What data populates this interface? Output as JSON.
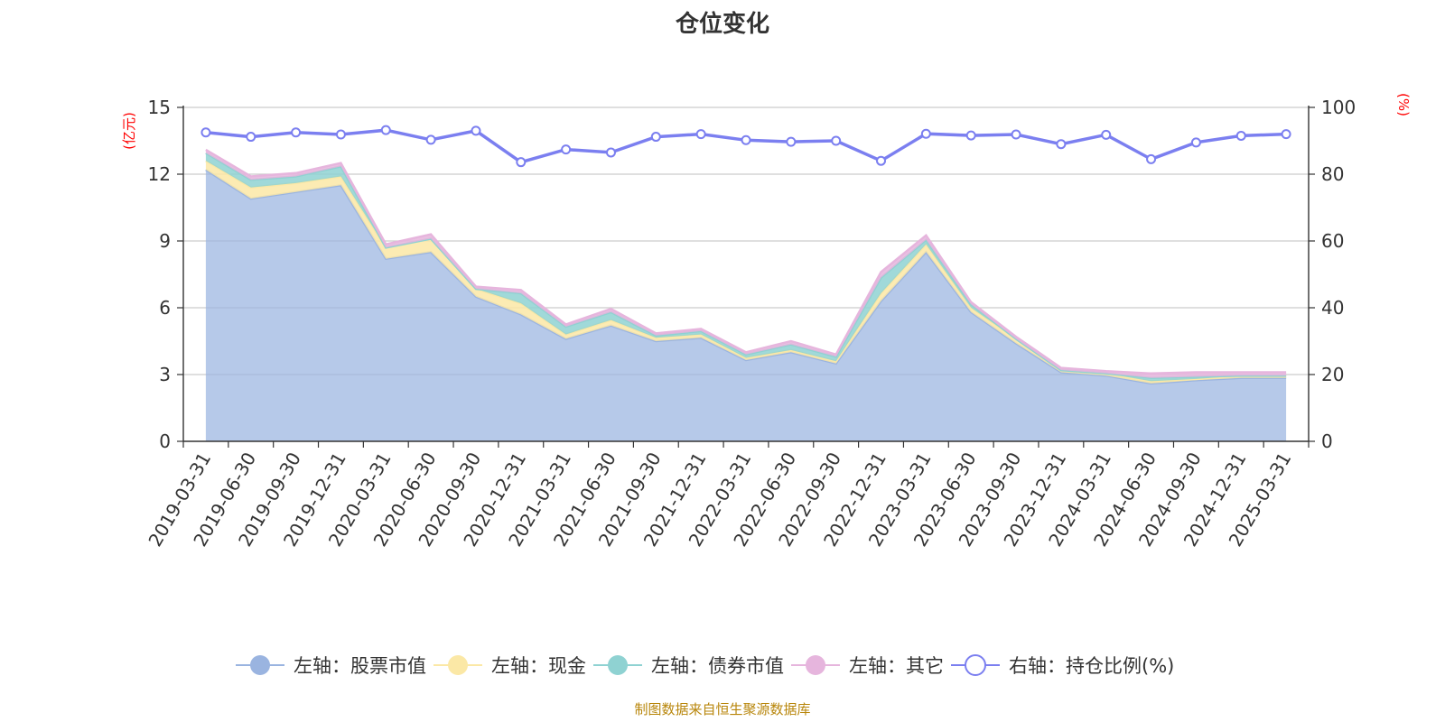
{
  "chart_data": {
    "type": "area",
    "title": "仓位变化",
    "y_left_unit": "(亿元)",
    "y_right_unit": "(%)",
    "y_left_ticks": [
      "0",
      "3",
      "6",
      "9",
      "12",
      "15"
    ],
    "y_right_ticks": [
      "0",
      "20",
      "40",
      "60",
      "80",
      "100"
    ],
    "ylim_left": [
      0,
      15
    ],
    "ylim_right": [
      0,
      100
    ],
    "x_tick_labels": [
      "2019-03-31",
      "2019-06-30",
      "2019-09-30",
      "2019-12-31",
      "2020-03-31",
      "2020-06-30",
      "2020-09-30",
      "2020-12-31",
      "2021-03-31",
      "2021-06-30",
      "2021-09-30",
      "2021-12-31",
      "2022-03-31",
      "2022-06-30",
      "2022-09-30",
      "2022-12-31",
      "2023-03-31",
      "2023-06-30",
      "2023-09-30",
      "2023-12-31",
      "2024-03-31",
      "2024-06-30",
      "2024-09-30",
      "2024-12-31",
      "2025-03-31"
    ],
    "grid": true,
    "legend_position": "bottom",
    "stacked": true,
    "series": [
      {
        "name": "左轴：股票市值",
        "axis": "left",
        "color": "#9ab4e0",
        "values": [
          12.2,
          10.9,
          11.2,
          11.5,
          8.2,
          8.5,
          6.5,
          5.7,
          4.6,
          5.2,
          4.5,
          4.65,
          3.65,
          4.0,
          3.5,
          6.3,
          8.5,
          5.8,
          4.4,
          3.1,
          2.95,
          2.6,
          2.75,
          2.85,
          2.85
        ]
      },
      {
        "name": "左轴：现金",
        "axis": "left",
        "color": "#fbe8a6",
        "values": [
          0.4,
          0.5,
          0.4,
          0.4,
          0.5,
          0.6,
          0.35,
          0.5,
          0.2,
          0.25,
          0.15,
          0.15,
          0.1,
          0.1,
          0.1,
          0.35,
          0.35,
          0.2,
          0.2,
          0.1,
          0.1,
          0.1,
          0.05,
          0.1,
          0.1
        ]
      },
      {
        "name": "左轴：债券市值",
        "axis": "left",
        "color": "#8fd2d2",
        "values": [
          0.35,
          0.35,
          0.3,
          0.45,
          0.0,
          0.0,
          0.0,
          0.45,
          0.35,
          0.35,
          0.1,
          0.15,
          0.15,
          0.25,
          0.2,
          0.7,
          0.2,
          0.15,
          0.0,
          0.0,
          0.0,
          0.15,
          0.1,
          0.0,
          0.0
        ]
      },
      {
        "name": "左轴：其它",
        "axis": "left",
        "color": "#e6b5dd",
        "values": [
          0.15,
          0.15,
          0.15,
          0.15,
          0.15,
          0.2,
          0.1,
          0.15,
          0.1,
          0.15,
          0.1,
          0.1,
          0.1,
          0.15,
          0.1,
          0.25,
          0.2,
          0.1,
          0.1,
          0.1,
          0.1,
          0.2,
          0.2,
          0.15,
          0.15
        ]
      },
      {
        "name": "右轴：持仓比例(%)",
        "axis": "right",
        "color": "#7b7ff0",
        "values": [
          92.5,
          91.2,
          92.5,
          91.9,
          93.2,
          90.3,
          93.0,
          83.6,
          87.4,
          86.5,
          91.2,
          92.0,
          90.2,
          89.7,
          90.0,
          84.0,
          92.1,
          91.6,
          91.9,
          89.0,
          91.8,
          84.5,
          89.5,
          91.5,
          92.0
        ]
      }
    ],
    "source_note": "制图数据来自恒生聚源数据库"
  }
}
